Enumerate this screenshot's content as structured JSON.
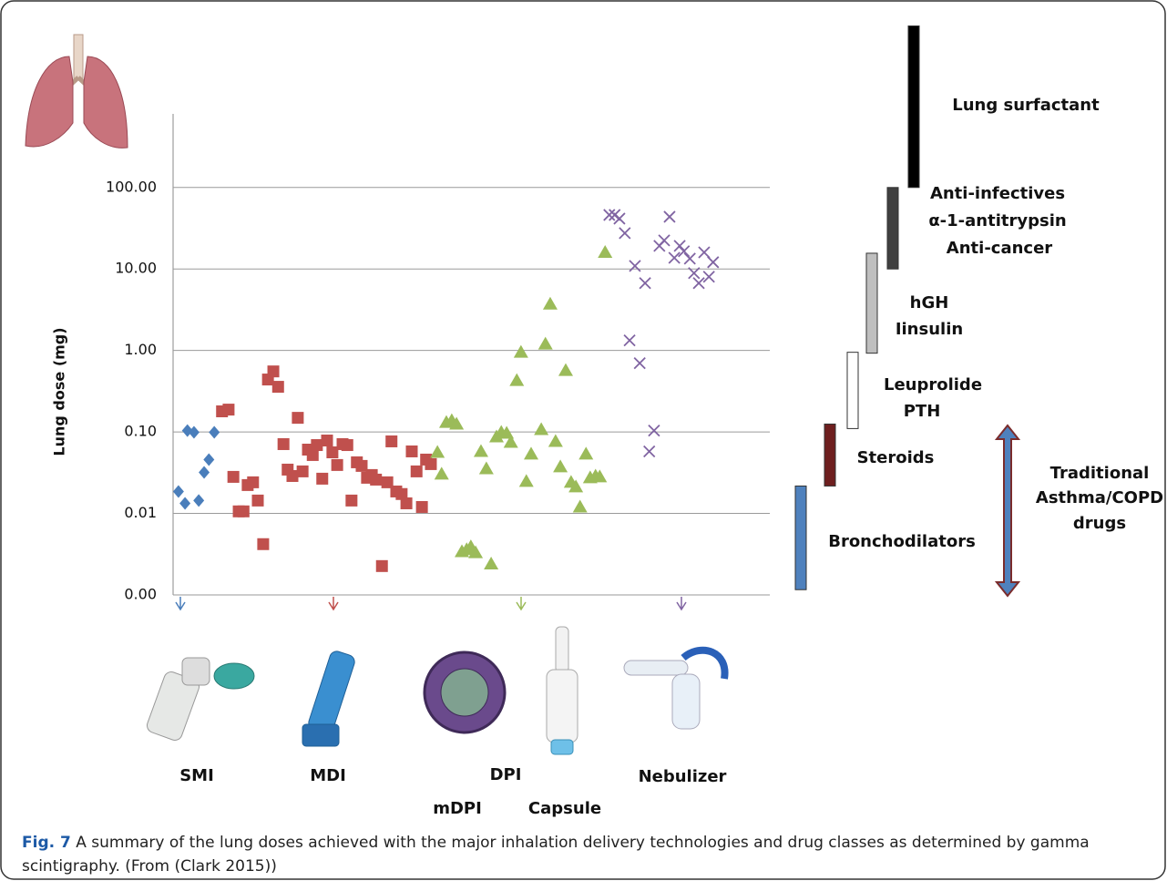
{
  "chart_data": {
    "type": "scatter",
    "y_label": "Lung dose (mg)",
    "log_y": true,
    "grid": true,
    "xlim": [
      0,
      100
    ],
    "ylim": [
      0.001,
      800
    ],
    "yticks": [
      {
        "value": 0.001,
        "label": "0.00"
      },
      {
        "value": 0.01,
        "label": "0.01"
      },
      {
        "value": 0.1,
        "label": "0.10"
      },
      {
        "value": 1,
        "label": "1.00"
      },
      {
        "value": 10,
        "label": "10.00"
      },
      {
        "value": 100,
        "label": "100.00"
      }
    ],
    "series": [
      {
        "name": "SMI",
        "color": "#4a7ebb",
        "marker": "diamond",
        "x": [
          0.9,
          2.0,
          2.4,
          3.5,
          4.3,
          5.2,
          6.0,
          6.9
        ],
        "values": [
          0.0186,
          0.0133,
          0.104,
          0.099,
          0.0144,
          0.0319,
          0.0458,
          0.099
        ]
      },
      {
        "name": "MDI",
        "color": "#c0504d",
        "marker": "square",
        "x": [
          8.2,
          9.3,
          10.1,
          11.0,
          11.8,
          12.5,
          13.4,
          14.2,
          15.1,
          15.9,
          16.8,
          17.6,
          18.5,
          19.2,
          20.0,
          20.9,
          21.7,
          22.6,
          23.4,
          24.1,
          25.0,
          25.8,
          26.7,
          27.5,
          28.4,
          29.2,
          29.9,
          30.8,
          31.6,
          32.5,
          33.3,
          34.0,
          35.0,
          35.9,
          36.6,
          37.4,
          38.3,
          39.1,
          40.0,
          40.8,
          41.7,
          42.4,
          43.2
        ],
        "values": [
          0.179,
          0.188,
          0.0281,
          0.0106,
          0.0106,
          0.0223,
          0.0241,
          0.0144,
          0.0042,
          0.44,
          0.553,
          0.358,
          0.0709,
          0.0345,
          0.0288,
          0.149,
          0.0328,
          0.0607,
          0.0521,
          0.069,
          0.0267,
          0.0785,
          0.0562,
          0.0393,
          0.0709,
          0.069,
          0.0144,
          0.0424,
          0.0383,
          0.0274,
          0.0296,
          0.026,
          0.00226,
          0.0241,
          0.0766,
          0.0186,
          0.0173,
          0.0133,
          0.0577,
          0.0328,
          0.012,
          0.0458,
          0.0403
        ]
      },
      {
        "name": "DPI",
        "color": "#9bbb59",
        "marker": "triangle",
        "x": [
          44.3,
          45.0,
          45.8,
          46.7,
          47.5,
          48.4,
          49.2,
          49.9,
          50.7,
          51.6,
          52.5,
          53.3,
          54.2,
          55.0,
          55.9,
          56.6,
          57.6,
          58.3,
          59.2,
          60.0,
          61.7,
          62.4,
          63.2,
          64.1,
          64.9,
          65.8,
          66.7,
          67.5,
          68.2,
          69.2,
          69.9,
          70.8,
          71.5,
          72.4
        ],
        "values": [
          0.0562,
          0.0304,
          0.131,
          0.138,
          0.125,
          0.0034,
          0.0036,
          0.0039,
          0.0033,
          0.0577,
          0.0354,
          0.0024,
          0.0871,
          0.0991,
          0.0965,
          0.0746,
          0.428,
          0.95,
          0.0247,
          0.0535,
          0.107,
          1.2,
          3.71,
          0.0766,
          0.0373,
          0.568,
          0.0241,
          0.0212,
          0.012,
          0.0535,
          0.0274,
          0.0288,
          0.0281,
          16
        ]
      },
      {
        "name": "Nebulizer",
        "color": "#8064a2",
        "marker": "x",
        "x": [
          73.1,
          74.0,
          74.8,
          75.7,
          77.4,
          79.1,
          76.5,
          78.2,
          79.8,
          80.6,
          81.5,
          82.3,
          83.2,
          84.0,
          84.9,
          85.6,
          86.6,
          87.3,
          88.1,
          89.0,
          89.8,
          90.5
        ],
        "values": [
          46.0,
          46.0,
          41.5,
          27.5,
          10.9,
          6.7,
          1.33,
          0.698,
          0.0577,
          0.104,
          19.2,
          22.4,
          43.7,
          13.7,
          19.2,
          16.5,
          13.4,
          8.89,
          6.7,
          16.0,
          8.02,
          12.1
        ]
      }
    ],
    "ranges": [
      {
        "label": [
          "Lung surfactant"
        ],
        "low": 100,
        "high": 9600,
        "color": "#000000"
      },
      {
        "label": [
          "Anti-infectives",
          "α-1-antitrypsin",
          "Anti-cancer"
        ],
        "low": 10,
        "high": 100,
        "color": "#404040"
      },
      {
        "label": [
          "hGH",
          "Iinsulin"
        ],
        "low": 0.926,
        "high": 15.6,
        "color": "#bfbfbf"
      },
      {
        "label": [
          "Leuprolide",
          "PTH"
        ],
        "low": 0.11,
        "high": 0.95,
        "color": "#ffffff"
      },
      {
        "label": [
          "Steroids"
        ],
        "low": 0.0217,
        "high": 0.125,
        "color": "#6e1f1f"
      },
      {
        "label": [
          "Bronchodilators"
        ],
        "low": 0.00116,
        "high": 0.0217,
        "color": "#4f81bd"
      }
    ],
    "bracket": {
      "label": [
        "Traditional",
        "Asthma/COPD",
        "drugs"
      ]
    }
  },
  "devices": [
    "SMI",
    "MDI",
    "DPI",
    "Nebulizer",
    "mDPI",
    "Capsule"
  ],
  "caption": {
    "label": "Fig. 7",
    "text": "A summary of the lung doses achieved with the major inhalation delivery technologies and drug classes as determined by gamma scintigraphy. (From (Clark 2015))"
  }
}
